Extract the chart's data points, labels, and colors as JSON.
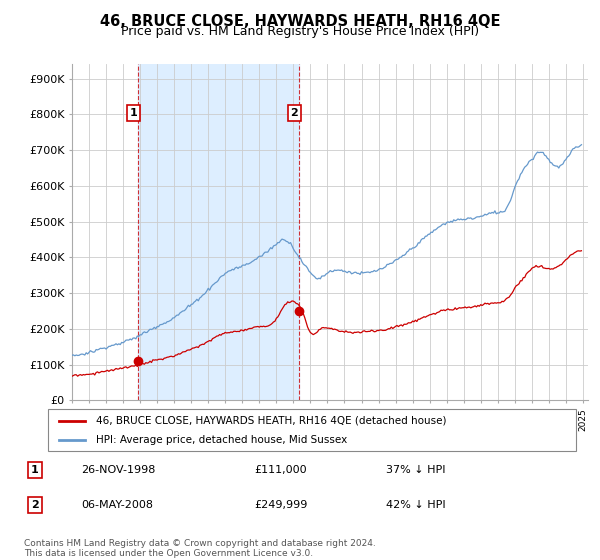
{
  "title": "46, BRUCE CLOSE, HAYWARDS HEATH, RH16 4QE",
  "subtitle": "Price paid vs. HM Land Registry's House Price Index (HPI)",
  "title_fontsize": 10.5,
  "subtitle_fontsize": 9,
  "ylabel_ticks": [
    "£0",
    "£100K",
    "£200K",
    "£300K",
    "£400K",
    "£500K",
    "£600K",
    "£700K",
    "£800K",
    "£900K"
  ],
  "ytick_values": [
    0,
    100000,
    200000,
    300000,
    400000,
    500000,
    600000,
    700000,
    800000,
    900000
  ],
  "ylim": [
    0,
    940000
  ],
  "xlim_start": 1995.0,
  "xlim_end": 2025.3,
  "sale1_x": 1998.9,
  "sale1_y": 111000,
  "sale1_label": "1",
  "sale2_x": 2008.35,
  "sale2_y": 249999,
  "sale2_label": "2",
  "red_color": "#cc0000",
  "blue_color": "#6699cc",
  "shade_color": "#ddeeff",
  "legend_line1": "46, BRUCE CLOSE, HAYWARDS HEATH, RH16 4QE (detached house)",
  "legend_line2": "HPI: Average price, detached house, Mid Sussex",
  "table_row1_num": "1",
  "table_row1_date": "26-NOV-1998",
  "table_row1_price": "£111,000",
  "table_row1_hpi": "37% ↓ HPI",
  "table_row2_num": "2",
  "table_row2_date": "06-MAY-2008",
  "table_row2_price": "£249,999",
  "table_row2_hpi": "42% ↓ HPI",
  "footer": "Contains HM Land Registry data © Crown copyright and database right 2024.\nThis data is licensed under the Open Government Licence v3.0.",
  "background_color": "#ffffff",
  "grid_color": "#cccccc"
}
